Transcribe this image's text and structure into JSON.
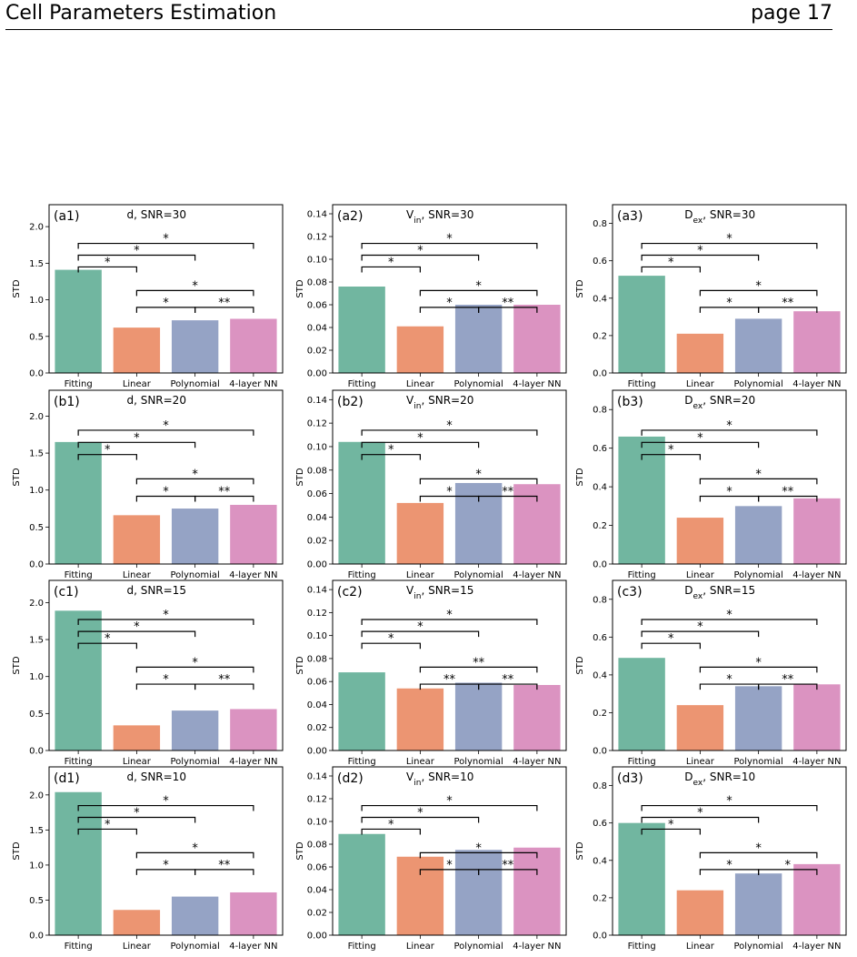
{
  "header": {
    "title": "Cell Parameters Estimation",
    "page": "page 17"
  },
  "colors": {
    "Fitting": "#71b6a0",
    "Linear": "#ec9572",
    "Polynomial": "#95a3c5",
    "4-layer NN": "#db93c1"
  },
  "chart_data": [
    {
      "panel": "(a1)",
      "title": "d, SNR=30",
      "type": "bar",
      "ylabel": "STD",
      "categories": [
        "Fitting",
        "Linear",
        "Polynomial",
        "4-layer NN"
      ],
      "values": [
        1.41,
        0.62,
        0.72,
        0.74
      ],
      "ylim": [
        0,
        2.3
      ],
      "yticks": [
        "0.0",
        "0.5",
        "1.0",
        "1.5",
        "2.0"
      ],
      "brackets": [
        [
          "Fitting",
          "Linear",
          "*"
        ],
        [
          "Fitting",
          "Polynomial",
          "*"
        ],
        [
          "Fitting",
          "4-layer NN",
          "*"
        ],
        [
          "Linear",
          "Polynomial",
          "*"
        ],
        [
          "Polynomial",
          "4-layer NN",
          "**"
        ],
        [
          "Linear",
          "4-layer NN",
          "*"
        ]
      ]
    },
    {
      "panel": "(a2)",
      "title": "Vin, SNR=30",
      "title_base": "V",
      "title_sub": "in",
      "title_rest": ", SNR=30",
      "type": "bar",
      "ylabel": "STD",
      "categories": [
        "Fitting",
        "Linear",
        "Polynomial",
        "4-layer NN"
      ],
      "values": [
        0.076,
        0.041,
        0.06,
        0.06
      ],
      "ylim": [
        0,
        0.148
      ],
      "yticks": [
        "0.00",
        "0.02",
        "0.04",
        "0.06",
        "0.08",
        "0.10",
        "0.12",
        "0.14"
      ],
      "brackets": [
        [
          "Fitting",
          "Linear",
          "*"
        ],
        [
          "Fitting",
          "Polynomial",
          "*"
        ],
        [
          "Fitting",
          "4-layer NN",
          "*"
        ],
        [
          "Linear",
          "Polynomial",
          "*"
        ],
        [
          "Polynomial",
          "4-layer NN",
          "**"
        ],
        [
          "Linear",
          "4-layer NN",
          "*"
        ]
      ]
    },
    {
      "panel": "(a3)",
      "title": "Dex, SNR=30",
      "title_base": "D",
      "title_sub": "ex",
      "title_rest": ", SNR=30",
      "type": "bar",
      "ylabel": "STD",
      "categories": [
        "Fitting",
        "Linear",
        "Polynomial",
        "4-layer NN"
      ],
      "values": [
        0.52,
        0.21,
        0.29,
        0.33
      ],
      "ylim": [
        0,
        0.9
      ],
      "yticks": [
        "0.0",
        "0.2",
        "0.4",
        "0.6",
        "0.8"
      ],
      "brackets": [
        [
          "Fitting",
          "Linear",
          "*"
        ],
        [
          "Fitting",
          "Polynomial",
          "*"
        ],
        [
          "Fitting",
          "4-layer NN",
          "*"
        ],
        [
          "Linear",
          "Polynomial",
          "*"
        ],
        [
          "Polynomial",
          "4-layer NN",
          "**"
        ],
        [
          "Linear",
          "4-layer NN",
          "*"
        ]
      ]
    },
    {
      "panel": "(b1)",
      "title": "d, SNR=20",
      "type": "bar",
      "ylabel": "STD",
      "categories": [
        "Fitting",
        "Linear",
        "Polynomial",
        "4-layer NN"
      ],
      "values": [
        1.65,
        0.66,
        0.75,
        0.8
      ],
      "ylim": [
        0,
        2.35
      ],
      "yticks": [
        "0.0",
        "0.5",
        "1.0",
        "1.5",
        "2.0"
      ],
      "brackets": [
        [
          "Fitting",
          "Linear",
          "*"
        ],
        [
          "Fitting",
          "Polynomial",
          "*"
        ],
        [
          "Fitting",
          "4-layer NN",
          "*"
        ],
        [
          "Linear",
          "Polynomial",
          "*"
        ],
        [
          "Polynomial",
          "4-layer NN",
          "**"
        ],
        [
          "Linear",
          "4-layer NN",
          "*"
        ]
      ]
    },
    {
      "panel": "(b2)",
      "title": "Vin, SNR=20",
      "title_base": "V",
      "title_sub": "in",
      "title_rest": ", SNR=20",
      "type": "bar",
      "ylabel": "STD",
      "categories": [
        "Fitting",
        "Linear",
        "Polynomial",
        "4-layer NN"
      ],
      "values": [
        0.104,
        0.052,
        0.069,
        0.068
      ],
      "ylim": [
        0,
        0.148
      ],
      "yticks": [
        "0.00",
        "0.02",
        "0.04",
        "0.06",
        "0.08",
        "0.10",
        "0.12",
        "0.14"
      ],
      "brackets": [
        [
          "Fitting",
          "Linear",
          "*"
        ],
        [
          "Fitting",
          "Polynomial",
          "*"
        ],
        [
          "Fitting",
          "4-layer NN",
          "*"
        ],
        [
          "Linear",
          "Polynomial",
          "*"
        ],
        [
          "Polynomial",
          "4-layer NN",
          "**"
        ],
        [
          "Linear",
          "4-layer NN",
          "*"
        ]
      ]
    },
    {
      "panel": "(b3)",
      "title": "Dex, SNR=20",
      "title_base": "D",
      "title_sub": "ex",
      "title_rest": ", SNR=20",
      "type": "bar",
      "ylabel": "STD",
      "categories": [
        "Fitting",
        "Linear",
        "Polynomial",
        "4-layer NN"
      ],
      "values": [
        0.66,
        0.24,
        0.3,
        0.34
      ],
      "ylim": [
        0,
        0.9
      ],
      "yticks": [
        "0.0",
        "0.2",
        "0.4",
        "0.6",
        "0.8"
      ],
      "brackets": [
        [
          "Fitting",
          "Linear",
          "*"
        ],
        [
          "Fitting",
          "Polynomial",
          "*"
        ],
        [
          "Fitting",
          "4-layer NN",
          "*"
        ],
        [
          "Linear",
          "Polynomial",
          "*"
        ],
        [
          "Polynomial",
          "4-layer NN",
          "**"
        ],
        [
          "Linear",
          "4-layer NN",
          "*"
        ]
      ]
    },
    {
      "panel": "(c1)",
      "title": "d, SNR=15",
      "type": "bar",
      "ylabel": "STD",
      "categories": [
        "Fitting",
        "Linear",
        "Polynomial",
        "4-layer NN"
      ],
      "values": [
        1.89,
        0.34,
        0.54,
        0.56
      ],
      "ylim": [
        0,
        2.3
      ],
      "yticks": [
        "0.0",
        "0.5",
        "1.0",
        "1.5",
        "2.0"
      ],
      "brackets": [
        [
          "Fitting",
          "Linear",
          "*"
        ],
        [
          "Fitting",
          "Polynomial",
          "*"
        ],
        [
          "Fitting",
          "4-layer NN",
          "*"
        ],
        [
          "Linear",
          "Polynomial",
          "*"
        ],
        [
          "Polynomial",
          "4-layer NN",
          "**"
        ],
        [
          "Linear",
          "4-layer NN",
          "*"
        ]
      ]
    },
    {
      "panel": "(c2)",
      "title": "Vin, SNR=15",
      "title_base": "V",
      "title_sub": "in",
      "title_rest": ", SNR=15",
      "type": "bar",
      "ylabel": "STD",
      "categories": [
        "Fitting",
        "Linear",
        "Polynomial",
        "4-layer NN"
      ],
      "values": [
        0.068,
        0.054,
        0.059,
        0.057
      ],
      "ylim": [
        0,
        0.148
      ],
      "yticks": [
        "0.00",
        "0.02",
        "0.04",
        "0.06",
        "0.08",
        "0.10",
        "0.12",
        "0.14"
      ],
      "brackets": [
        [
          "Fitting",
          "Linear",
          "*"
        ],
        [
          "Fitting",
          "Polynomial",
          "*"
        ],
        [
          "Fitting",
          "4-layer NN",
          "*"
        ],
        [
          "Linear",
          "Polynomial",
          "**"
        ],
        [
          "Polynomial",
          "4-layer NN",
          "**"
        ],
        [
          "Linear",
          "4-layer NN",
          "**"
        ]
      ]
    },
    {
      "panel": "(c3)",
      "title": "Dex, SNR=15",
      "title_base": "D",
      "title_sub": "ex",
      "title_rest": ", SNR=15",
      "type": "bar",
      "ylabel": "STD",
      "categories": [
        "Fitting",
        "Linear",
        "Polynomial",
        "4-layer NN"
      ],
      "values": [
        0.49,
        0.24,
        0.34,
        0.35
      ],
      "ylim": [
        0,
        0.9
      ],
      "yticks": [
        "0.0",
        "0.2",
        "0.4",
        "0.6",
        "0.8"
      ],
      "brackets": [
        [
          "Fitting",
          "Linear",
          "*"
        ],
        [
          "Fitting",
          "Polynomial",
          "*"
        ],
        [
          "Fitting",
          "4-layer NN",
          "*"
        ],
        [
          "Linear",
          "Polynomial",
          "*"
        ],
        [
          "Polynomial",
          "4-layer NN",
          "**"
        ],
        [
          "Linear",
          "4-layer NN",
          "*"
        ]
      ]
    },
    {
      "panel": "(d1)",
      "title": "d, SNR=10",
      "type": "bar",
      "ylabel": "STD",
      "categories": [
        "Fitting",
        "Linear",
        "Polynomial",
        "4-layer NN"
      ],
      "values": [
        2.04,
        0.36,
        0.55,
        0.61
      ],
      "ylim": [
        0,
        2.4
      ],
      "yticks": [
        "0.0",
        "0.5",
        "1.0",
        "1.5",
        "2.0"
      ],
      "brackets": [
        [
          "Fitting",
          "Linear",
          "*"
        ],
        [
          "Fitting",
          "Polynomial",
          "*"
        ],
        [
          "Fitting",
          "4-layer NN",
          "*"
        ],
        [
          "Linear",
          "Polynomial",
          "*"
        ],
        [
          "Polynomial",
          "4-layer NN",
          "**"
        ],
        [
          "Linear",
          "4-layer NN",
          "*"
        ]
      ]
    },
    {
      "panel": "(d2)",
      "title": "Vin, SNR=10",
      "title_base": "V",
      "title_sub": "in",
      "title_rest": ", SNR=10",
      "type": "bar",
      "ylabel": "STD",
      "categories": [
        "Fitting",
        "Linear",
        "Polynomial",
        "4-layer NN"
      ],
      "values": [
        0.089,
        0.069,
        0.075,
        0.077
      ],
      "ylim": [
        0,
        0.148
      ],
      "yticks": [
        "0.00",
        "0.02",
        "0.04",
        "0.06",
        "0.08",
        "0.10",
        "0.12",
        "0.14"
      ],
      "brackets": [
        [
          "Fitting",
          "Linear",
          "*"
        ],
        [
          "Fitting",
          "Polynomial",
          "*"
        ],
        [
          "Fitting",
          "4-layer NN",
          "*"
        ],
        [
          "Linear",
          "Polynomial",
          "*"
        ],
        [
          "Polynomial",
          "4-layer NN",
          "**"
        ],
        [
          "Linear",
          "4-layer NN",
          "*"
        ]
      ]
    },
    {
      "panel": "(d3)",
      "title": "Dex, SNR=10",
      "title_base": "D",
      "title_sub": "ex",
      "title_rest": ", SNR=10",
      "type": "bar",
      "ylabel": "STD",
      "categories": [
        "Fitting",
        "Linear",
        "Polynomial",
        "4-layer NN"
      ],
      "values": [
        0.6,
        0.24,
        0.33,
        0.38
      ],
      "ylim": [
        0,
        0.9
      ],
      "yticks": [
        "0.0",
        "0.2",
        "0.4",
        "0.6",
        "0.8"
      ],
      "brackets": [
        [
          "Fitting",
          "Linear",
          "*"
        ],
        [
          "Fitting",
          "Polynomial",
          "*"
        ],
        [
          "Fitting",
          "4-layer NN",
          "*"
        ],
        [
          "Linear",
          "Polynomial",
          "*"
        ],
        [
          "Polynomial",
          "4-layer NN",
          "*"
        ],
        [
          "Linear",
          "4-layer NN",
          "*"
        ]
      ]
    }
  ]
}
